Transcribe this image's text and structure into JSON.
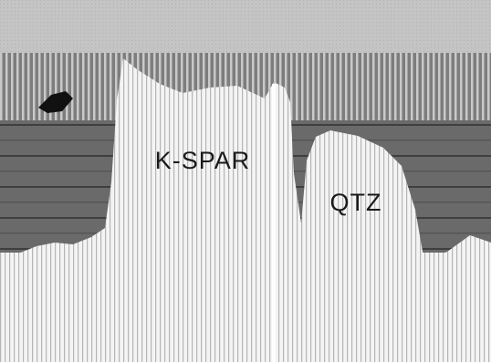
{
  "labels": {
    "kspar": "K-SPAR",
    "qtz": "QTZ"
  }
}
